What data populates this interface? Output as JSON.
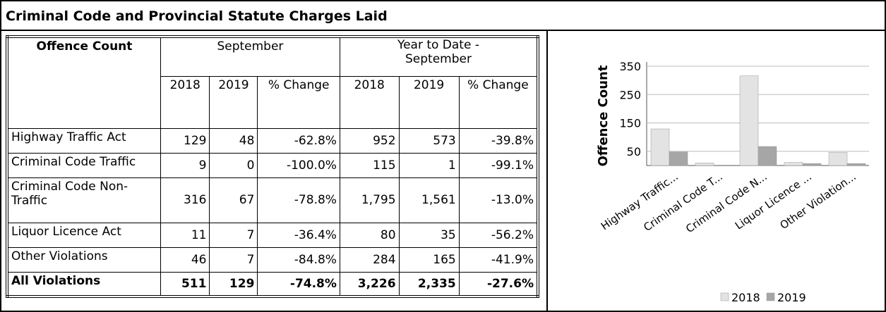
{
  "header": {
    "title": "Criminal Code and Provincial Statute Charges Laid"
  },
  "table": {
    "label": "Offence Count",
    "groups": [
      "September",
      "Year to Date - September"
    ],
    "subheaders": [
      "2018",
      "2019",
      "% Change",
      "2018",
      "2019",
      "% Change"
    ],
    "rows": [
      [
        "Highway Traffic Act",
        "129",
        "48",
        "-62.8%",
        "952",
        "573",
        "-39.8%"
      ],
      [
        "Criminal Code Traffic",
        "9",
        "0",
        "-100.0%",
        "115",
        "1",
        "-99.1%"
      ],
      [
        "Criminal Code Non-Traffic",
        "316",
        "67",
        "-78.8%",
        "1,795",
        "1,561",
        "-13.0%"
      ],
      [
        "Liquor Licence Act",
        "11",
        "7",
        "-36.4%",
        "80",
        "35",
        "-56.2%"
      ],
      [
        "Other Violations",
        "46",
        "7",
        "-84.8%",
        "284",
        "165",
        "-41.9%"
      ],
      [
        "All Violations",
        "511",
        "129",
        "-74.8%",
        "3,226",
        "2,335",
        "-27.6%"
      ]
    ]
  },
  "chart_data": {
    "type": "bar",
    "y_label": "Offence Count",
    "categories": [
      "Highway Traffic...",
      "Criminal Code T...",
      "Criminal Code N...",
      "Liquor Licence ...",
      "Other Violation..."
    ],
    "series": [
      {
        "name": "2018",
        "color": "#e3e3e3",
        "values": [
          129,
          9,
          316,
          11,
          46
        ]
      },
      {
        "name": "2019",
        "color": "#a6a6a6",
        "values": [
          48,
          0,
          67,
          7,
          7
        ]
      }
    ],
    "ylim": [
      0,
      350
    ],
    "yticks": [
      50,
      150,
      250,
      350
    ],
    "grid": true
  }
}
